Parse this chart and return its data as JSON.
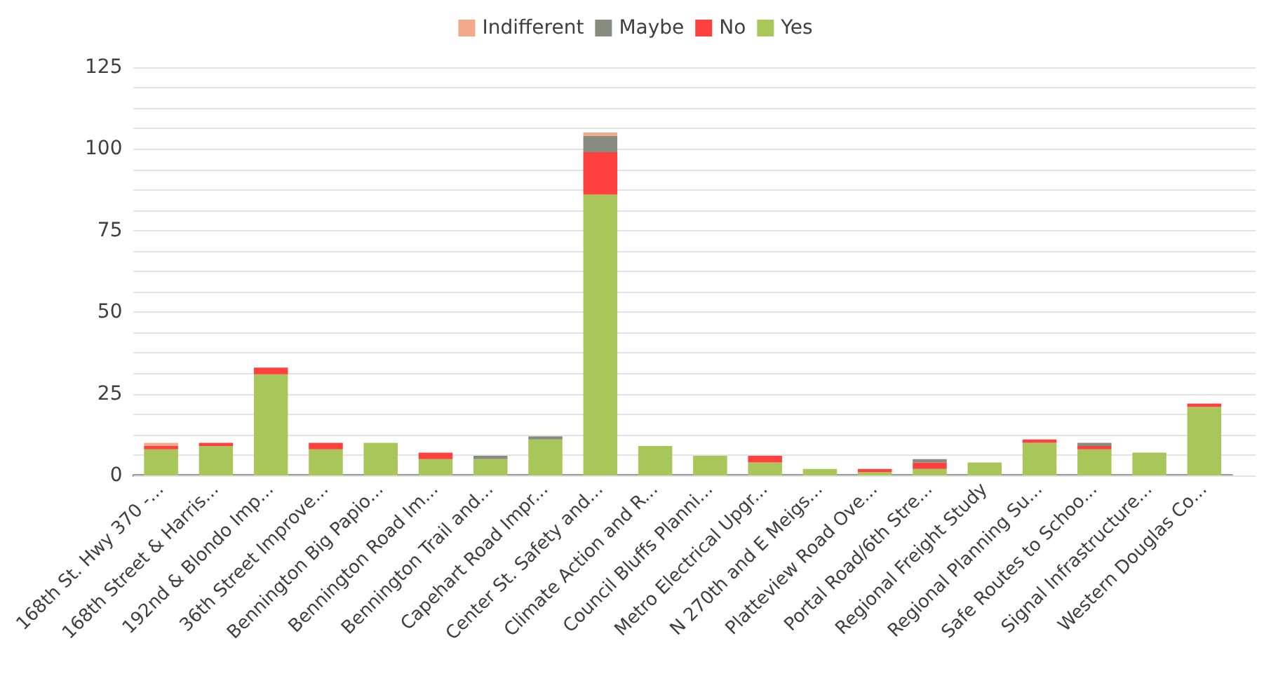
{
  "chart_data": {
    "type": "bar",
    "stacked": true,
    "categories": [
      "168th St. Hwy 370 -...",
      "168th Street & Harris...",
      "192nd & Blondo Imp...",
      "36th Street Improve...",
      "Bennington Big Papio...",
      "Bennington Road Im...",
      "Bennington Trail and...",
      "Capehart Road Impr...",
      "Center St. Safety and...",
      "Climate Action and R...",
      "Council Bluffs Planni...",
      "Metro Electrical Upgr...",
      "N 270th and E Meigs...",
      "Platteview Road Ove...",
      "Portal Road/6th Stre...",
      "Regional Freight Study",
      "Regional Planning Su...",
      "Safe Routes to Schoo...",
      "Signal Infrastructure...",
      "Western Douglas Co..."
    ],
    "series": [
      {
        "name": "Yes",
        "color": "#a9c65a",
        "values": [
          8,
          9,
          31,
          8,
          10,
          5,
          5,
          11,
          86,
          9,
          6,
          4,
          2,
          1,
          2,
          4,
          10,
          8,
          7,
          21
        ]
      },
      {
        "name": "No",
        "color": "#ff4040",
        "values": [
          1,
          1,
          2,
          2,
          0,
          2,
          0,
          0,
          13,
          0,
          0,
          2,
          0,
          1,
          2,
          0,
          1,
          1,
          0,
          1
        ]
      },
      {
        "name": "Maybe",
        "color": "#878c80",
        "values": [
          0,
          0,
          0,
          0,
          0,
          0,
          1,
          1,
          5,
          0,
          0,
          0,
          0,
          0,
          1,
          0,
          0,
          1,
          0,
          0
        ]
      },
      {
        "name": "Indifferent",
        "color": "#f4a98a",
        "values": [
          1,
          0,
          0,
          0,
          0,
          0,
          0,
          0,
          1,
          0,
          0,
          0,
          0,
          0,
          0,
          0,
          0,
          0,
          0,
          0
        ]
      }
    ],
    "ylim": [
      0,
      125
    ],
    "yticks": [
      0,
      {
        "value": 6.25,
        "label": null
      },
      {
        "value": 12.5,
        "label": null
      },
      {
        "value": 18.75,
        "label": null
      },
      25,
      {
        "value": 31.25,
        "label": null
      },
      {
        "value": 37.5,
        "label": null
      },
      {
        "value": 43.75,
        "label": null
      },
      50,
      {
        "value": 56.25,
        "label": null
      },
      {
        "value": 62.5,
        "label": null
      },
      {
        "value": 68.75,
        "label": null
      },
      75,
      {
        "value": 81.25,
        "label": null
      },
      {
        "value": 87.5,
        "label": null
      },
      {
        "value": 93.75,
        "label": null
      },
      100,
      {
        "value": 106.25,
        "label": null
      },
      {
        "value": 112.5,
        "label": null
      },
      {
        "value": 118.75,
        "label": null
      },
      125
    ],
    "grid": "y",
    "legend": "top"
  }
}
